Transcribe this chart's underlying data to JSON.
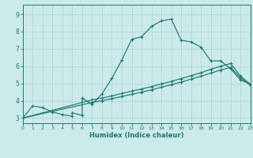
{
  "xlabel": "Humidex (Indice chaleur)",
  "bg_color": "#cdeaea",
  "line_color": "#1a7870",
  "grid_color": "#aad8d8",
  "xlim": [
    0,
    23
  ],
  "ylim": [
    2.7,
    9.55
  ],
  "xticks": [
    0,
    1,
    2,
    3,
    4,
    5,
    6,
    7,
    8,
    9,
    10,
    11,
    12,
    13,
    14,
    15,
    16,
    17,
    18,
    19,
    20,
    21,
    22,
    23
  ],
  "yticks": [
    3,
    4,
    5,
    6,
    7,
    8,
    9
  ],
  "curve1_x": [
    0,
    1,
    2,
    3,
    4,
    5,
    5,
    6,
    6,
    7,
    8,
    9,
    10,
    11,
    12,
    13,
    14,
    15,
    16,
    17,
    18,
    19,
    20,
    21,
    22,
    23
  ],
  "curve1_y": [
    3.0,
    3.7,
    3.6,
    3.35,
    3.2,
    3.1,
    3.3,
    3.15,
    4.15,
    3.8,
    4.4,
    5.3,
    6.35,
    7.55,
    7.7,
    8.3,
    8.62,
    8.72,
    7.5,
    7.4,
    7.1,
    6.3,
    6.3,
    5.85,
    5.2,
    4.95
  ],
  "curve2_x": [
    0,
    7,
    8,
    9,
    10,
    11,
    12,
    13,
    14,
    15,
    16,
    17,
    18,
    19,
    20,
    21,
    22,
    23
  ],
  "curve2_y": [
    3.0,
    4.05,
    4.15,
    4.28,
    4.42,
    4.55,
    4.68,
    4.82,
    4.97,
    5.12,
    5.28,
    5.45,
    5.62,
    5.82,
    6.0,
    6.15,
    5.42,
    4.95
  ],
  "curve3_x": [
    0,
    7,
    8,
    9,
    10,
    11,
    12,
    13,
    14,
    15,
    16,
    17,
    18,
    19,
    20,
    21,
    22,
    23
  ],
  "curve3_y": [
    3.0,
    3.9,
    4.0,
    4.12,
    4.25,
    4.37,
    4.5,
    4.63,
    4.78,
    4.93,
    5.08,
    5.25,
    5.42,
    5.6,
    5.78,
    5.93,
    5.32,
    4.9
  ]
}
